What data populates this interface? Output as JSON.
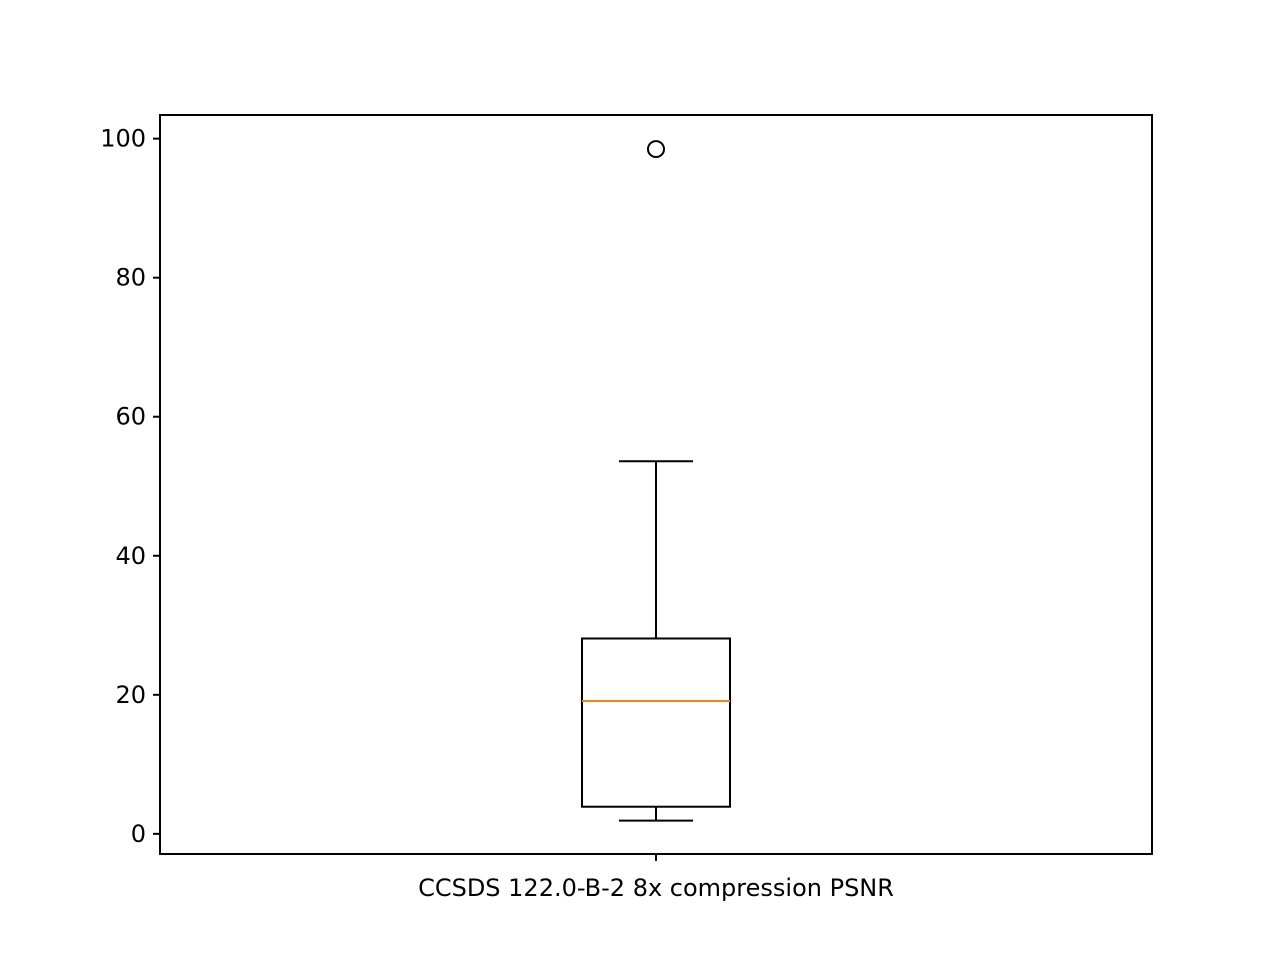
{
  "chart_data": {
    "type": "box",
    "categories": [
      "CCSDS 122.0-B-2 8x compression PSNR"
    ],
    "boxes": [
      {
        "whisker_low": 1.9,
        "q1": 3.9,
        "median": 19.1,
        "q3": 28.1,
        "whisker_high": 53.6,
        "outliers": [
          98.5
        ]
      }
    ],
    "ylim": [
      -2.9,
      103.4
    ],
    "yticks": [
      0,
      20,
      40,
      60,
      80,
      100
    ],
    "ytick_labels": [
      "0",
      "20",
      "40",
      "60",
      "80",
      "100"
    ],
    "title": "",
    "xlabel": "",
    "ylabel": "",
    "grid": false,
    "colors": {
      "box": "#000000",
      "median": "#ff7f0e",
      "outlier": "#000000",
      "axes": "#000000"
    }
  }
}
